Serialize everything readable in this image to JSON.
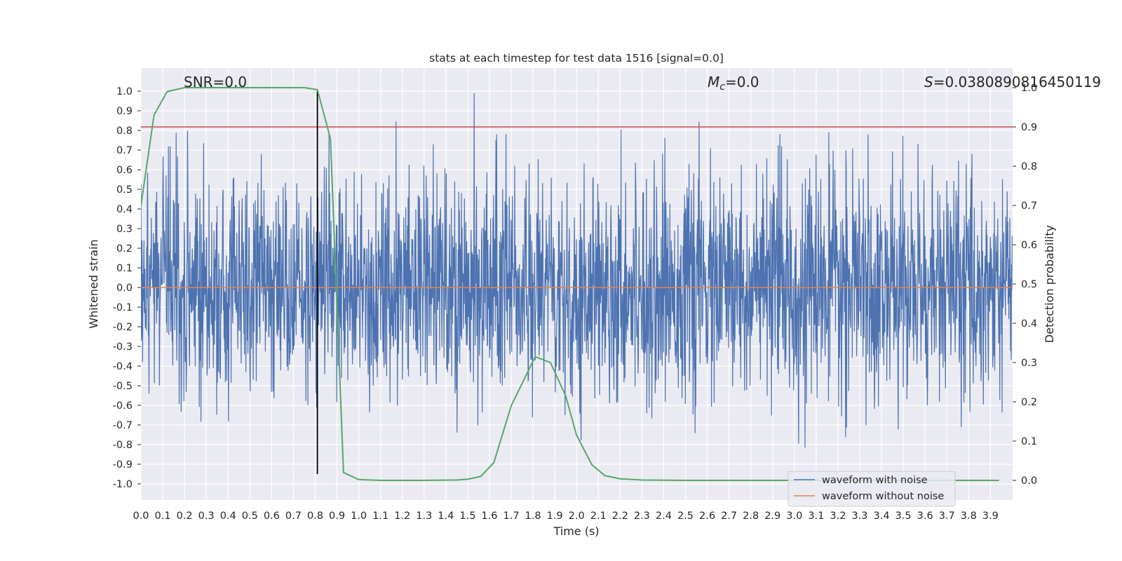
{
  "chart_data": {
    "type": "line",
    "title": "stats at each timestep for test data 1516 [signal=0.0]",
    "xlabel": "Time (s)",
    "ylabel": "Whitened strain",
    "y2label": "Detection probability",
    "xlim": [
      0.0,
      4.0
    ],
    "ylim": [
      -1.05,
      1.05
    ],
    "y2lim": [
      -0.05,
      1.0
    ],
    "xticks": [
      "0.0",
      "0.1",
      "0.2",
      "0.3",
      "0.4",
      "0.5",
      "0.6",
      "0.7",
      "0.8",
      "0.9",
      "1.0",
      "1.1",
      "1.2",
      "1.3",
      "1.4",
      "1.5",
      "1.6",
      "1.7",
      "1.8",
      "1.9",
      "2.0",
      "2.1",
      "2.2",
      "2.3",
      "2.4",
      "2.5",
      "2.6",
      "2.7",
      "2.8",
      "2.9",
      "3.0",
      "3.1",
      "3.2",
      "3.3",
      "3.4",
      "3.5",
      "3.6",
      "3.7",
      "3.8",
      "3.9"
    ],
    "yticks": [
      "1.0",
      "0.9",
      "0.8",
      "0.7",
      "0.6",
      "0.5",
      "0.4",
      "0.3",
      "0.2",
      "0.1",
      "0.0",
      "-0.1",
      "-0.2",
      "-0.3",
      "-0.4",
      "-0.5",
      "-0.6",
      "-0.7",
      "-0.8",
      "-0.9",
      "-1.0"
    ],
    "y2ticks": [
      "1.0",
      "0.9",
      "0.8",
      "0.7",
      "0.6",
      "0.5",
      "0.4",
      "0.3",
      "0.2",
      "0.1",
      "0.0"
    ],
    "annotations": {
      "snr": "SNR=0.0",
      "mc": "=0.0",
      "mc_symbol": "M",
      "mc_sub": "c",
      "s": "=0.038089081645011​9",
      "s_symbol": "S"
    },
    "series": [
      {
        "name": "waveform with noise",
        "color": "#4c72b0",
        "kind": "noise",
        "amplitude": 1.0,
        "duration": 4.0
      },
      {
        "name": "waveform without noise",
        "color": "#dd8452",
        "kind": "constant",
        "value": 0.0
      },
      {
        "name": "detection probability",
        "color": "#55a868",
        "axis": "right",
        "x": [
          0.0,
          0.06,
          0.12,
          0.2,
          0.3,
          0.45,
          0.6,
          0.75,
          0.81,
          0.87,
          0.93,
          1.0,
          1.1,
          1.3,
          1.45,
          1.5,
          1.56,
          1.62,
          1.7,
          1.81,
          1.88,
          1.95,
          2.0,
          2.07,
          2.13,
          2.2,
          2.3,
          2.5,
          3.0,
          3.5,
          3.94
        ],
        "values": [
          0.7,
          0.93,
          0.99,
          1.0,
          1.0,
          1.0,
          1.0,
          1.0,
          0.995,
          0.87,
          0.02,
          0.002,
          0.0,
          0.0,
          0.001,
          0.003,
          0.01,
          0.045,
          0.19,
          0.315,
          0.3,
          0.215,
          0.115,
          0.04,
          0.012,
          0.004,
          0.001,
          0.0,
          0.0,
          0.0,
          0.0
        ]
      }
    ],
    "threshold": {
      "value": 0.9,
      "axis": "right",
      "color": "#c44e52"
    },
    "marker_line": {
      "x": 0.81,
      "from": -0.95,
      "to": 1.0,
      "color": "#000000"
    },
    "legend": {
      "position": "bottom-right",
      "entries": [
        {
          "label": "waveform with noise",
          "color": "#4c72b0"
        },
        {
          "label": "waveform without noise",
          "color": "#dd8452"
        }
      ]
    },
    "grid": true
  },
  "colors": {
    "axes_bg": "#eaeaf2",
    "grid": "#ffffff",
    "text": "#262626"
  }
}
